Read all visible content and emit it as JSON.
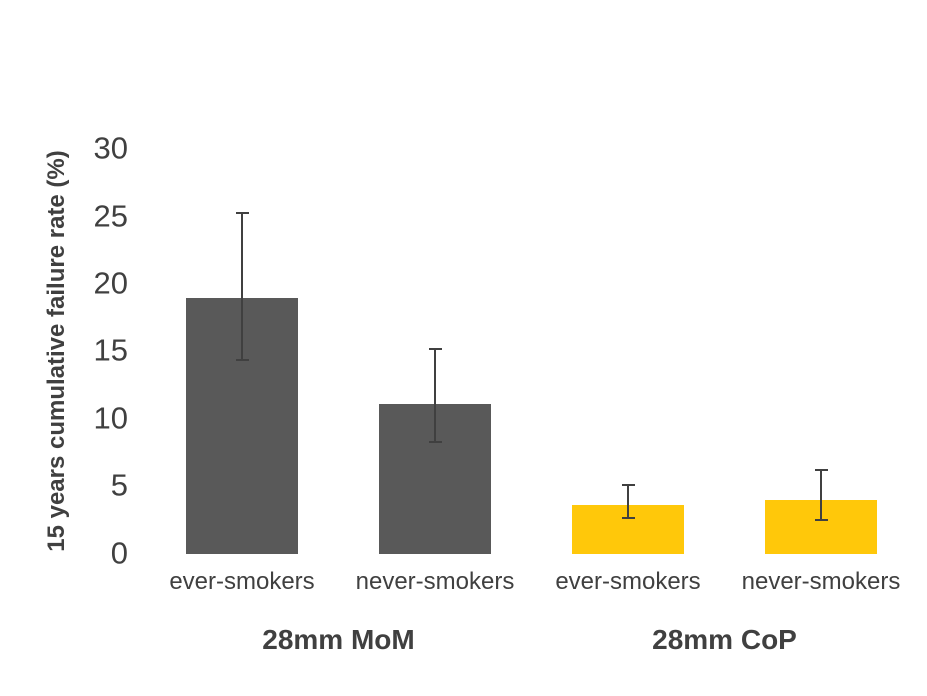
{
  "chart_data": {
    "type": "bar",
    "title": "",
    "ylabel": "15 years cumulative failure rate (%)",
    "xlabel": "",
    "ylim": [
      0,
      30
    ],
    "yticks": [
      0,
      5,
      10,
      15,
      20,
      25,
      30
    ],
    "grid": false,
    "legend": false,
    "axis_lines": false,
    "error_bars": true,
    "groups": [
      {
        "label": "28mm MoM",
        "color": "#595959",
        "bars": [
          {
            "category": "ever-smokers",
            "value": 19.0,
            "ci_low": 14.4,
            "ci_high": 25.3
          },
          {
            "category": "never-smokers",
            "value": 11.1,
            "ci_low": 8.3,
            "ci_high": 15.2
          }
        ]
      },
      {
        "label": "28mm CoP",
        "color": "#FFC80A",
        "bars": [
          {
            "category": "ever-smokers",
            "value": 3.6,
            "ci_low": 2.6,
            "ci_high": 5.1
          },
          {
            "category": "never-smokers",
            "value": 4.0,
            "ci_low": 2.5,
            "ci_high": 6.2
          }
        ]
      }
    ],
    "colors": {
      "background": "#FFFFFF",
      "text": "#404040",
      "error_bar": "#404040",
      "bar_mom": "#595959",
      "bar_cop": "#FFC80A"
    }
  }
}
